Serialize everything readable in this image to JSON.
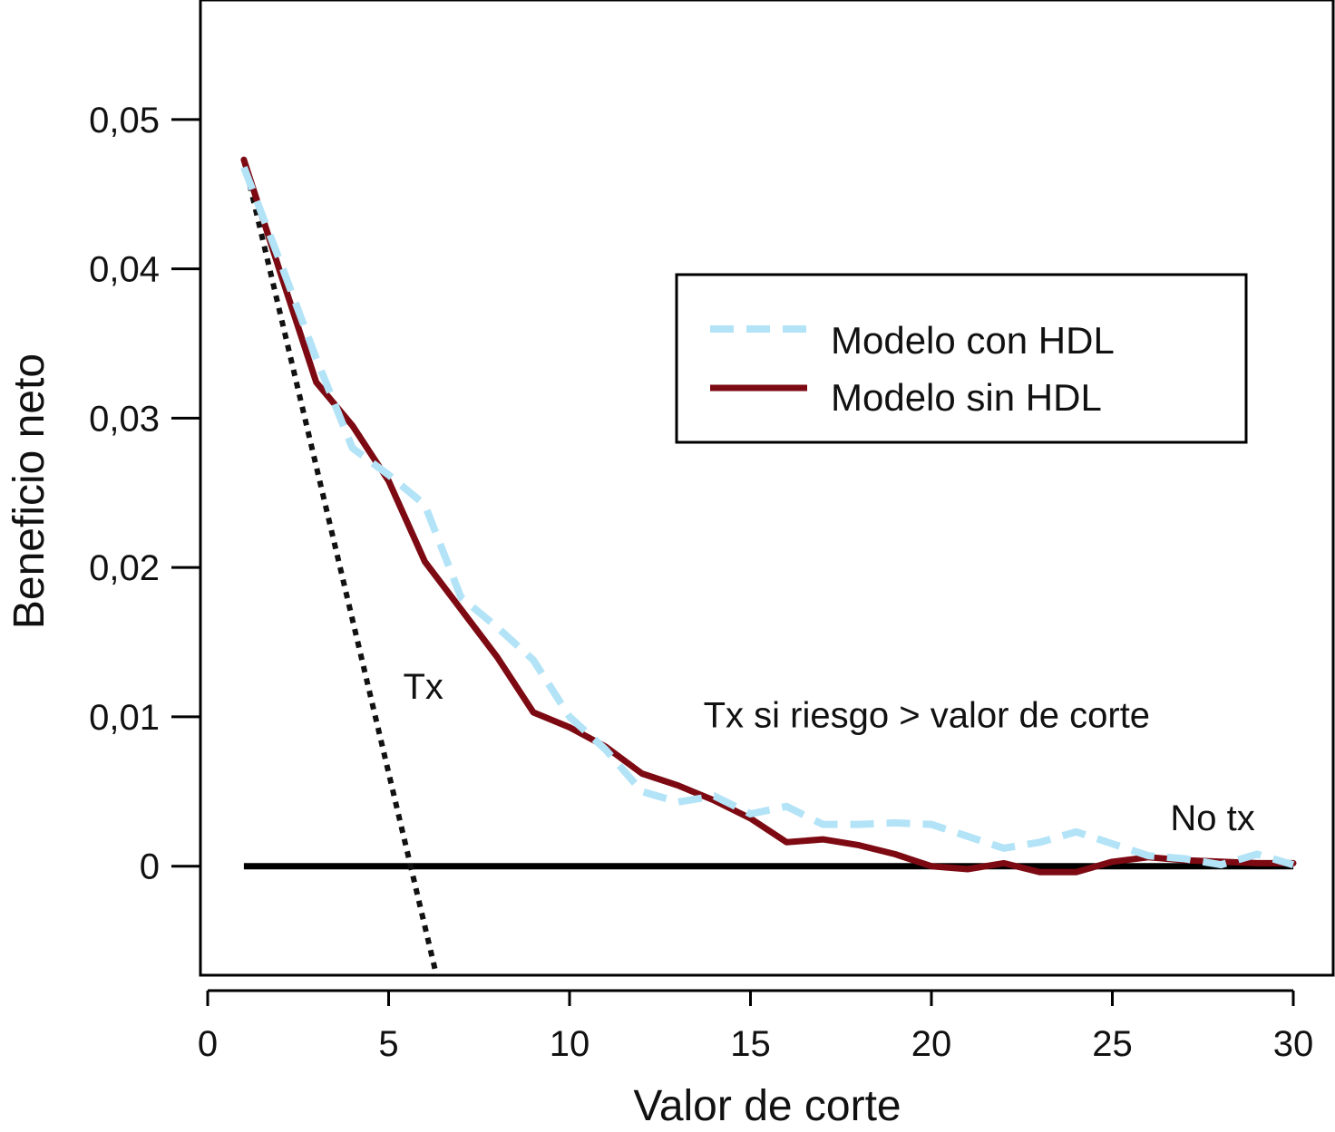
{
  "chart_data": {
    "type": "line",
    "title": "",
    "xlabel": "Valor de corte",
    "ylabel": "Beneficio neto",
    "xlim": [
      0,
      30
    ],
    "ylim": [
      -0.0073,
      0.058
    ],
    "x_ticks": [
      0,
      5,
      10,
      15,
      20,
      25,
      30
    ],
    "x_tick_labels": [
      "0",
      "5",
      "10",
      "15",
      "20",
      "25",
      "30"
    ],
    "y_ticks": [
      0,
      0.01,
      0.02,
      0.03,
      0.04,
      0.05
    ],
    "y_tick_labels": [
      "0",
      "0,01",
      "0,02",
      "0,03",
      "0,04",
      "0,05"
    ],
    "grid": false,
    "legend_position": "top-right",
    "series": [
      {
        "name": "Modelo con HDL",
        "style": "dashed",
        "color": "#b3e3f7",
        "x": [
          1,
          2,
          3,
          4,
          5,
          6,
          7,
          8,
          9,
          10,
          11,
          12,
          13,
          14,
          15,
          16,
          17,
          18,
          19,
          20,
          21,
          22,
          23,
          24,
          25,
          26,
          27,
          28,
          29,
          30
        ],
        "y": [
          0.0468,
          0.0405,
          0.034,
          0.028,
          0.0262,
          0.0242,
          0.018,
          0.016,
          0.0138,
          0.01,
          0.0078,
          0.005,
          0.0043,
          0.0047,
          0.0035,
          0.004,
          0.0028,
          0.0028,
          0.0029,
          0.0028,
          0.002,
          0.0012,
          0.0016,
          0.0023,
          0.0015,
          0.0007,
          0.0005,
          0.0001,
          0.0008,
          0.0001
        ]
      },
      {
        "name": "Modelo sin HDL",
        "style": "solid",
        "color": "#7d0a12",
        "x": [
          1,
          2,
          3,
          4,
          5,
          6,
          7,
          8,
          9,
          10,
          11,
          12,
          13,
          14,
          15,
          16,
          17,
          18,
          19,
          20,
          21,
          22,
          23,
          24,
          25,
          26,
          27,
          28,
          29,
          30
        ],
        "y": [
          0.0473,
          0.0398,
          0.0324,
          0.0295,
          0.0258,
          0.0204,
          0.0172,
          0.014,
          0.0103,
          0.0093,
          0.008,
          0.0062,
          0.0054,
          0.0044,
          0.0032,
          0.0016,
          0.0018,
          0.0014,
          0.0008,
          0.0,
          -0.0002,
          0.0002,
          -0.0004,
          -0.0004,
          0.0003,
          0.0006,
          0.0004,
          0.0003,
          0.0002,
          0.0002
        ]
      },
      {
        "name": "Tx",
        "style": "dotted",
        "color": "#111111",
        "x": [
          1,
          6.32
        ],
        "y": [
          0.0473,
          -0.0073
        ]
      },
      {
        "name": "No tx",
        "style": "solid",
        "color": "#000000",
        "x": [
          1,
          30
        ],
        "y": [
          0,
          0
        ]
      }
    ],
    "annotations": [
      {
        "text": "Tx",
        "x": 5.4,
        "y": 0.0112
      },
      {
        "text": "Tx si riesgo > valor de corte",
        "x": 13.7,
        "y": 0.0093
      },
      {
        "text": "No tx",
        "x": 26.6,
        "y": 0.0024
      }
    ]
  }
}
